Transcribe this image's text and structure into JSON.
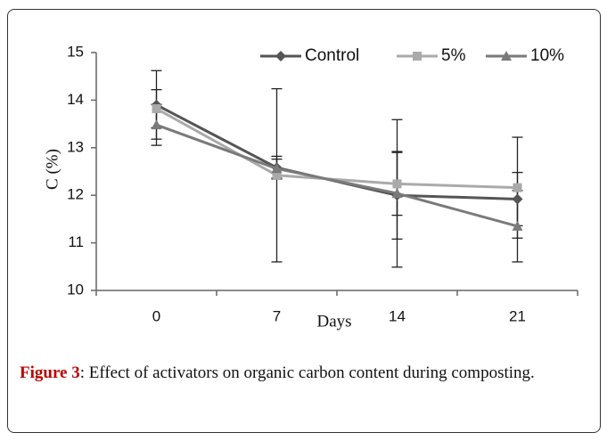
{
  "chart_data": {
    "type": "line",
    "x_label": "Days",
    "y_label": "C (%)",
    "categories": [
      "0",
      "7",
      "14",
      "21"
    ],
    "series": [
      {
        "name": "Control",
        "color": "#555555",
        "marker": "diamond",
        "values": [
          13.9,
          12.58,
          12.0,
          11.92
        ],
        "errors": [
          0.72,
          0.24,
          0.92,
          0.56
        ]
      },
      {
        "name": "5%",
        "color": "#aaaaaa",
        "marker": "square",
        "values": [
          13.82,
          12.42,
          12.24,
          12.16
        ],
        "errors": [
          0.4,
          1.82,
          0.66,
          1.06
        ]
      },
      {
        "name": "10%",
        "color": "#7a7a7a",
        "marker": "triangle",
        "values": [
          13.48,
          12.56,
          12.04,
          11.35
        ],
        "errors": [
          0.43,
          0.2,
          1.55,
          0.75
        ]
      }
    ],
    "ylim": [
      10,
      15
    ],
    "yticks": [
      10,
      11,
      12,
      13,
      14,
      15
    ],
    "grid": false,
    "legend": "top"
  },
  "caption": {
    "label": "Figure 3",
    "text": ": Effect of activators on organic carbon content during composting."
  }
}
